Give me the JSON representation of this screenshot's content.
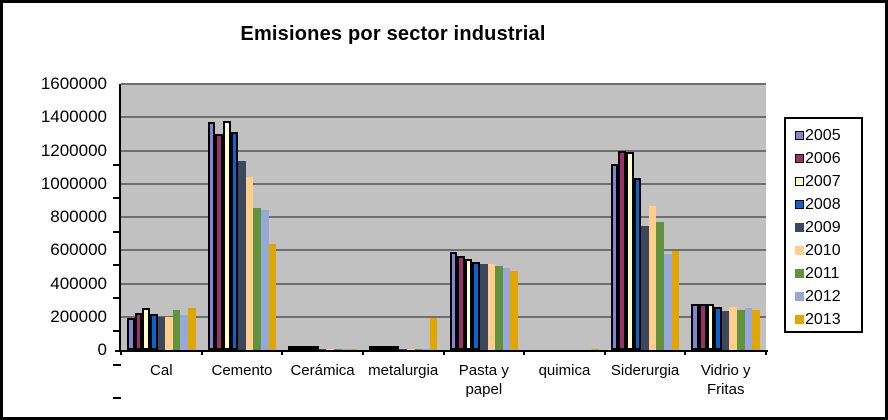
{
  "chart_data": {
    "type": "bar",
    "title": "Emisiones por sector industrial",
    "categories": [
      "Cal",
      "Cemento",
      "Cerámica",
      "metalurgia",
      "Pasta y papel",
      "quimica",
      "Siderurgia",
      "Vidrio y Fritas"
    ],
    "xtick_labels": [
      "Cal",
      "Cemento",
      "Cerámica",
      "metalurgia",
      "Pasta y\npapel",
      "quimica",
      "Siderurgia",
      "Vidrio y\nFritas"
    ],
    "ylim": [
      0,
      1600000
    ],
    "ytick_step": 200000,
    "ytick_labels": [
      "0",
      "200000",
      "400000",
      "600000",
      "800000",
      "1000000",
      "1200000",
      "1400000",
      "1600000"
    ],
    "grid": true,
    "legend_position": "right",
    "plot_background": "#C1C1C1",
    "gridline_color": "#6F6F6F",
    "series": [
      {
        "name": "2005",
        "color": "#8583D5",
        "border": true,
        "values": [
          195000,
          1370000,
          18000,
          2000,
          590000,
          0,
          1120000,
          275000
        ]
      },
      {
        "name": "2006",
        "color": "#993366",
        "border": true,
        "values": [
          225000,
          1300000,
          18000,
          2000,
          565000,
          0,
          1200000,
          275000
        ]
      },
      {
        "name": "2007",
        "color": "#FFFFCC",
        "border": true,
        "values": [
          255000,
          1380000,
          15000,
          2000,
          545000,
          0,
          1190000,
          275000
        ]
      },
      {
        "name": "2008",
        "color": "#0B64CB",
        "border": true,
        "values": [
          215000,
          1310000,
          12000,
          2000,
          530000,
          0,
          1035000,
          260000
        ]
      },
      {
        "name": "2009",
        "color": "#3B475C",
        "border": false,
        "values": [
          200000,
          1135000,
          5000,
          2000,
          520000,
          0,
          745000,
          235000
        ]
      },
      {
        "name": "2010",
        "color": "#FFCE8D",
        "border": false,
        "values": [
          200000,
          1040000,
          5000,
          3000,
          515000,
          0,
          865000,
          260000
        ]
      },
      {
        "name": "2011",
        "color": "#61923C",
        "border": false,
        "values": [
          240000,
          855000,
          6000,
          3000,
          505000,
          0,
          770000,
          240000
        ]
      },
      {
        "name": "2012",
        "color": "#95A8D8",
        "border": false,
        "values": [
          210000,
          840000,
          5000,
          3000,
          495000,
          0,
          580000,
          255000
        ]
      },
      {
        "name": "2013",
        "color": "#E2A600",
        "border": false,
        "values": [
          250000,
          640000,
          5000,
          195000,
          475000,
          8000,
          595000,
          240000
        ]
      }
    ]
  }
}
